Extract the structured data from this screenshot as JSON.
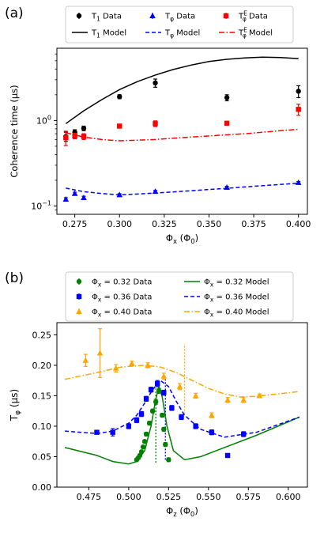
{
  "chart_data": [
    {
      "panel_label": "(a)",
      "type": "scatter",
      "xlabel": "Φ_x (Φ_0)",
      "ylabel": "Coherence time (μs)",
      "xlim": [
        0.265,
        0.405
      ],
      "ylim": [
        0.08,
        7.0
      ],
      "yscale": "log",
      "x_ticks": [
        0.275,
        0.3,
        0.325,
        0.35,
        0.375,
        0.4
      ],
      "x_tick_labels": [
        "0.275",
        "0.300",
        "0.325",
        "0.350",
        "0.375",
        "0.400"
      ],
      "y_ticks": [
        0.1,
        1.0
      ],
      "y_tick_labels": [
        "10⁻¹",
        "10⁰"
      ],
      "legend_position": "top (above axes), 3 columns",
      "series": [
        {
          "name": "T1 Data",
          "kind": "data",
          "color": "#000000",
          "marker": "circle",
          "x": [
            0.27,
            0.275,
            0.28,
            0.3,
            0.32,
            0.36,
            0.4
          ],
          "y": [
            0.65,
            0.73,
            0.81,
            1.9,
            2.75,
            1.85,
            2.2
          ],
          "err": [
            0.08,
            0.05,
            0.05,
            0.1,
            0.3,
            0.15,
            0.35
          ]
        },
        {
          "name": "T1 Model",
          "kind": "model",
          "color": "#000000",
          "dash": "solid",
          "x": [
            0.27,
            0.28,
            0.29,
            0.3,
            0.31,
            0.32,
            0.33,
            0.34,
            0.35,
            0.36,
            0.37,
            0.38,
            0.39,
            0.4
          ],
          "y": [
            0.92,
            1.3,
            1.75,
            2.3,
            2.85,
            3.4,
            3.95,
            4.45,
            4.9,
            5.2,
            5.4,
            5.5,
            5.45,
            5.3
          ]
        },
        {
          "name": "Tφ Data",
          "kind": "data",
          "color": "#0000ff",
          "marker": "triangle",
          "x": [
            0.27,
            0.275,
            0.28,
            0.3,
            0.32,
            0.36,
            0.4
          ],
          "y": [
            0.12,
            0.14,
            0.125,
            0.135,
            0.148,
            0.165,
            0.188
          ],
          "err": [
            0.005,
            0.005,
            0.005,
            0.004,
            0.004,
            0.005,
            0.005
          ]
        },
        {
          "name": "Tφ Model",
          "kind": "model",
          "color": "#0000ff",
          "dash": "dashed",
          "x": [
            0.27,
            0.28,
            0.29,
            0.3,
            0.31,
            0.32,
            0.33,
            0.34,
            0.35,
            0.36,
            0.37,
            0.38,
            0.39,
            0.4
          ],
          "y": [
            0.162,
            0.147,
            0.14,
            0.135,
            0.138,
            0.142,
            0.146,
            0.151,
            0.156,
            0.161,
            0.167,
            0.173,
            0.179,
            0.185
          ]
        },
        {
          "name": "TφE Data",
          "kind": "data",
          "color": "#ff0000",
          "marker": "square",
          "x": [
            0.27,
            0.275,
            0.28,
            0.3,
            0.32,
            0.36,
            0.4
          ],
          "y": [
            0.63,
            0.66,
            0.65,
            0.86,
            0.92,
            0.93,
            1.35
          ],
          "err": [
            0.12,
            0.05,
            0.05,
            0.04,
            0.07,
            0.04,
            0.2
          ]
        },
        {
          "name": "TφE Model",
          "kind": "model",
          "color": "#ff0000",
          "dash": "dashdot",
          "x": [
            0.27,
            0.28,
            0.29,
            0.3,
            0.31,
            0.32,
            0.33,
            0.34,
            0.35,
            0.36,
            0.37,
            0.38,
            0.39,
            0.4
          ],
          "y": [
            0.72,
            0.64,
            0.6,
            0.58,
            0.59,
            0.6,
            0.62,
            0.64,
            0.66,
            0.68,
            0.7,
            0.73,
            0.76,
            0.79
          ]
        }
      ]
    },
    {
      "panel_label": "(b)",
      "type": "scatter",
      "xlabel": "Φ_z (Φ_0)",
      "ylabel": "T_φ (μs)",
      "xlim": [
        0.455,
        0.612
      ],
      "ylim": [
        0.0,
        0.27
      ],
      "yscale": "linear",
      "x_ticks": [
        0.475,
        0.5,
        0.525,
        0.55,
        0.575,
        0.6
      ],
      "x_tick_labels": [
        "0.475",
        "0.500",
        "0.525",
        "0.550",
        "0.575",
        "0.600"
      ],
      "y_ticks": [
        0.0,
        0.05,
        0.1,
        0.15,
        0.2,
        0.25
      ],
      "y_tick_labels": [
        "0.00",
        "0.05",
        "0.10",
        "0.15",
        "0.20",
        "0.25"
      ],
      "legend_position": "top (above axes), 2 columns",
      "series": [
        {
          "name": "Φx = 0.32 Data",
          "kind": "data",
          "color": "#008000",
          "marker": "circle",
          "x": [
            0.505,
            0.506,
            0.507,
            0.508,
            0.509,
            0.51,
            0.511,
            0.513,
            0.515,
            0.517,
            0.519,
            0.521,
            0.522,
            0.523,
            0.525
          ],
          "y": [
            0.045,
            0.048,
            0.052,
            0.058,
            0.066,
            0.075,
            0.087,
            0.105,
            0.125,
            0.14,
            0.158,
            0.118,
            0.095,
            0.07,
            0.045
          ],
          "err": [
            0.002,
            0.002,
            0.002,
            0.002,
            0.002,
            0.002,
            0.003,
            0.003,
            0.003,
            0.004,
            0.004,
            0.003,
            0.003,
            0.003,
            0.003
          ]
        },
        {
          "name": "Φx = 0.32 Model",
          "kind": "model",
          "color": "#008000",
          "dash": "solid",
          "x": [
            0.46,
            0.48,
            0.49,
            0.5,
            0.505,
            0.51,
            0.514,
            0.517,
            0.519,
            0.521,
            0.524,
            0.528,
            0.535,
            0.545,
            0.56,
            0.58,
            0.607
          ],
          "y": [
            0.065,
            0.052,
            0.042,
            0.038,
            0.042,
            0.06,
            0.1,
            0.145,
            0.165,
            0.148,
            0.1,
            0.06,
            0.045,
            0.05,
            0.065,
            0.085,
            0.115
          ]
        },
        {
          "name": "Φx = 0.36 Data",
          "kind": "data",
          "color": "#0000ff",
          "marker": "square",
          "x": [
            0.48,
            0.49,
            0.5,
            0.505,
            0.508,
            0.511,
            0.514,
            0.518,
            0.522,
            0.527,
            0.533,
            0.542,
            0.552,
            0.562,
            0.572
          ],
          "y": [
            0.09,
            0.09,
            0.1,
            0.11,
            0.12,
            0.145,
            0.16,
            0.17,
            0.155,
            0.13,
            0.115,
            0.1,
            0.09,
            0.052,
            0.087
          ],
          "err": [
            0.003,
            0.006,
            0.004,
            0.004,
            0.004,
            0.004,
            0.004,
            0.005,
            0.004,
            0.004,
            0.004,
            0.004,
            0.004,
            0.003,
            0.004
          ]
        },
        {
          "name": "Φx = 0.36 Model",
          "kind": "model",
          "color": "#0000ff",
          "dash": "dashed",
          "x": [
            0.46,
            0.48,
            0.49,
            0.5,
            0.505,
            0.51,
            0.515,
            0.52,
            0.525,
            0.53,
            0.535,
            0.545,
            0.56,
            0.58,
            0.607
          ],
          "y": [
            0.092,
            0.088,
            0.092,
            0.105,
            0.118,
            0.138,
            0.16,
            0.175,
            0.165,
            0.14,
            0.118,
            0.095,
            0.082,
            0.09,
            0.115
          ]
        },
        {
          "name": "Φx = 0.40 Data",
          "kind": "data",
          "color": "#ffa500",
          "marker": "triangle",
          "x": [
            0.473,
            0.482,
            0.492,
            0.502,
            0.512,
            0.522,
            0.532,
            0.542,
            0.552,
            0.562,
            0.572,
            0.582
          ],
          "y": [
            0.208,
            0.22,
            0.195,
            0.203,
            0.2,
            0.182,
            0.165,
            0.15,
            0.118,
            0.143,
            0.143,
            0.15
          ],
          "err": [
            0.01,
            0.04,
            0.006,
            0.004,
            0.004,
            0.005,
            0.005,
            0.004,
            0.004,
            0.004,
            0.004,
            0.003
          ]
        },
        {
          "name": "Φx = 0.40 Model",
          "kind": "model",
          "color": "#ffa500",
          "dash": "dashdot",
          "x": [
            0.46,
            0.48,
            0.495,
            0.51,
            0.52,
            0.53,
            0.54,
            0.55,
            0.56,
            0.57,
            0.58,
            0.59,
            0.607
          ],
          "y": [
            0.177,
            0.188,
            0.197,
            0.2,
            0.197,
            0.188,
            0.175,
            0.162,
            0.153,
            0.148,
            0.149,
            0.152,
            0.157
          ]
        }
      ],
      "vlines": [
        {
          "x": 0.517,
          "color": "#008000",
          "ymin": 0.04,
          "ymax": 0.165
        },
        {
          "x": 0.523,
          "color": "#0000ff",
          "ymin": 0.045,
          "ymax": 0.18
        },
        {
          "x": 0.535,
          "color": "#ffa500",
          "ymin": 0.12,
          "ymax": 0.235
        }
      ]
    }
  ]
}
